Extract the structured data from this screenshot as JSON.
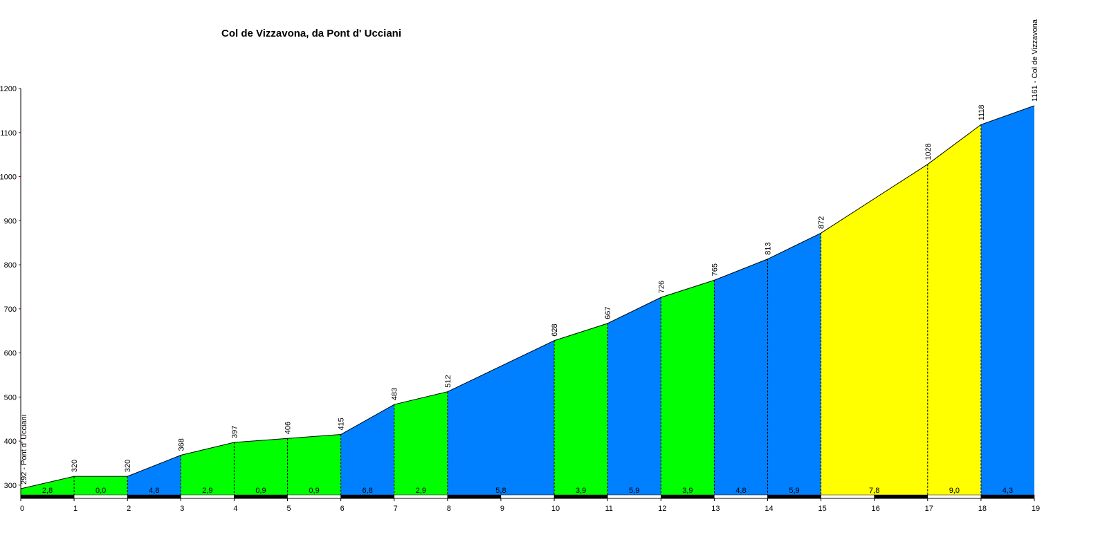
{
  "chart_data": {
    "type": "area",
    "title": "Col de Vizzavona, da Pont d' Ucciani",
    "x": [
      0,
      1,
      2,
      3,
      4,
      5,
      6,
      7,
      8,
      10,
      11,
      12,
      13,
      14,
      15,
      17,
      18,
      19
    ],
    "values": [
      292,
      320,
      320,
      368,
      397,
      406,
      415,
      483,
      512,
      628,
      667,
      726,
      765,
      813,
      872,
      1028,
      1118,
      1161
    ],
    "value_labels": [
      "292 - Pont d' Ucciani",
      "320",
      "320",
      "368",
      "397",
      "406",
      "415",
      "483",
      "512",
      "628",
      "667",
      "726",
      "765",
      "813",
      "872",
      "1028",
      "1118",
      "1161 - Col de Vizzavona"
    ],
    "segments": {
      "values": [
        2.8,
        0.0,
        4.8,
        2.9,
        0.9,
        0.9,
        6.8,
        2.9,
        5.8,
        3.9,
        5.9,
        3.9,
        4.8,
        5.9,
        7.8,
        9.0,
        4.3
      ],
      "value_labels": [
        "2,8",
        "0,0",
        "4,8",
        "2,9",
        "0,9",
        "0,9",
        "6,8",
        "2,9",
        "5,8",
        "3,9",
        "5,9",
        "3,9",
        "4,8",
        "5,9",
        "7,8",
        "9,0",
        "4,3"
      ],
      "colors": [
        "#00ff00",
        "#00ff00",
        "#0080ff",
        "#00ff00",
        "#00ff00",
        "#00ff00",
        "#0080ff",
        "#00ff00",
        "#0080ff",
        "#00ff00",
        "#0080ff",
        "#00ff00",
        "#0080ff",
        "#0080ff",
        "#ffff00",
        "#ffff00",
        "#0080ff"
      ]
    },
    "xlim": [
      0,
      19
    ],
    "ylim": [
      270,
      1200
    ],
    "xticks": [
      0,
      1,
      2,
      3,
      4,
      5,
      6,
      7,
      8,
      9,
      10,
      11,
      12,
      13,
      14,
      15,
      16,
      17,
      18,
      19
    ],
    "yticks": [
      300,
      400,
      500,
      600,
      700,
      800,
      900,
      1000,
      1100,
      1200
    ]
  }
}
